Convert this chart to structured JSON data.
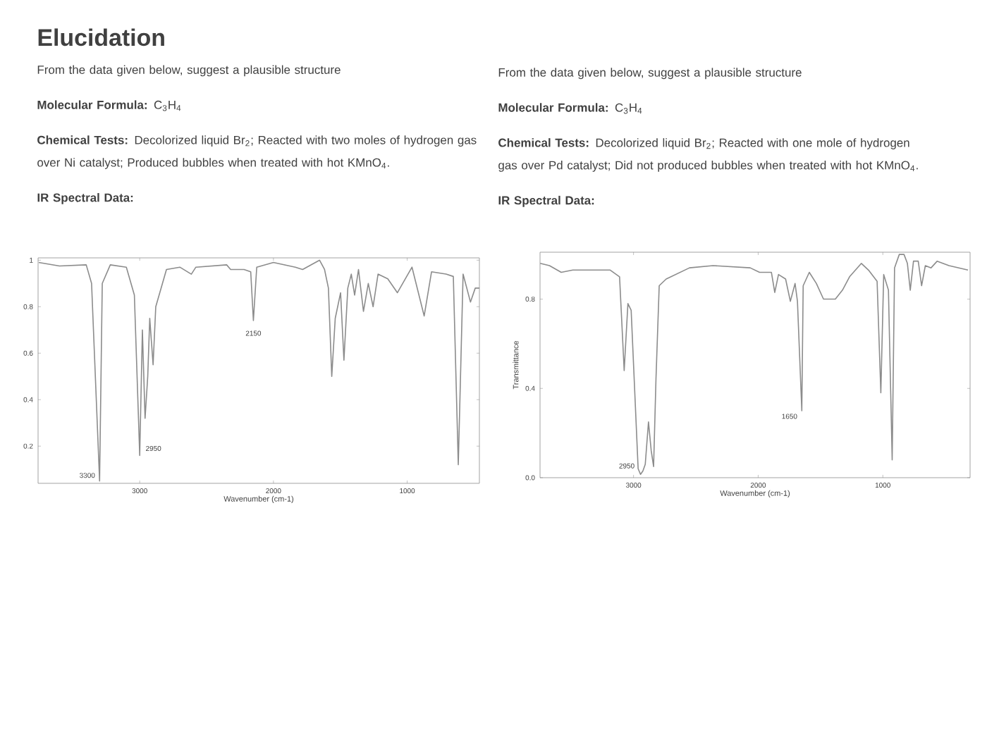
{
  "chart_data": [
    {
      "type": "line",
      "title": "Elucidation",
      "subtitle": "From the data given below, suggest a plausible structure",
      "annotations": [
        "**Molecular Formula:** C$_{3}$H$_{4}$",
        "**Chemical Tests:** Decolorized liquid Br$_{2}$; Reacted with two moles of hydrogen gas over Ni catalyst; Produced bubbles when treated with hot KMnO$_{4}$.",
        "**IR Spectral Data:**",
        {
          "text": "3300",
          "x": 3300,
          "y": 0.05
        },
        {
          "text": "2950",
          "x": 3000,
          "y": 0.16
        },
        {
          "text": "2150",
          "x": 2150,
          "y": 0.74
        }
      ],
      "xlabel": "Wavenumber (cm-1)",
      "color": "#8c8c8c",
      "x": [
        3755,
        3600,
        3400,
        3360,
        3300,
        3280,
        3220,
        3100,
        3040,
        3000,
        2980,
        2960,
        2940,
        2925,
        2900,
        2880,
        2850,
        2800,
        2700,
        2614,
        2580,
        2350,
        2320,
        2220,
        2170,
        2150,
        2125,
        2000,
        1836,
        1782,
        1655,
        1618,
        1589,
        1564,
        1538,
        1498,
        1473,
        1444,
        1418,
        1393,
        1364,
        1327,
        1291,
        1255,
        1218,
        1145,
        1073,
        964,
        873,
        818,
        709,
        655,
        618,
        582,
        527,
        491,
        460
      ],
      "values": [
        0.99,
        0.975,
        0.98,
        0.9,
        0.05,
        0.9,
        0.98,
        0.97,
        0.85,
        0.16,
        0.7,
        0.32,
        0.5,
        0.75,
        0.55,
        0.8,
        0.86,
        0.96,
        0.97,
        0.94,
        0.97,
        0.98,
        0.96,
        0.96,
        0.95,
        0.74,
        0.97,
        0.99,
        0.97,
        0.96,
        1.0,
        0.96,
        0.88,
        0.5,
        0.75,
        0.86,
        0.57,
        0.88,
        0.94,
        0.85,
        0.96,
        0.78,
        0.9,
        0.8,
        0.94,
        0.92,
        0.86,
        0.97,
        0.76,
        0.95,
        0.94,
        0.93,
        0.12,
        0.94,
        0.82,
        0.88,
        0.88
      ],
      "xlim": [
        3760,
        460
      ],
      "ylim": [
        0.04,
        1.01
      ],
      "xticks": [
        3000,
        2000,
        1000
      ],
      "yticks": [
        1,
        0.8,
        0.6,
        0.4,
        0.2
      ]
    },
    {
      "type": "line",
      "subtitle": "From the data given below, suggest a plausible structure",
      "annotations": [
        "**Molecular Formula:** C$_{3}$H$_{4}$",
        "**Chemical Tests:** Decolorized liquid Br$_{2}$; Reacted with one mole of hydrogen gas over Pd catalyst; Did not produced bubbles when treated with hot KMnO$_{4}$.",
        "**IR Spectral Data:**",
        {
          "text": "2950",
          "x": 2944,
          "y": 0.015
        },
        {
          "text": "1650",
          "x": 1650,
          "y": 0.3
        }
      ],
      "xlabel": "Wavenumber (cm-1)",
      "ylabel": "Transmittance",
      "color": "#8c8c8c",
      "x": [
        3749,
        3674,
        3580,
        3487,
        3187,
        3112,
        3075,
        3045,
        3019,
        2963,
        2944,
        2925,
        2906,
        2880,
        2858,
        2839,
        2820,
        2794,
        2738,
        2551,
        2363,
        2064,
        1989,
        1894,
        1867,
        1837,
        1780,
        1742,
        1704,
        1685,
        1650,
        1639,
        1590,
        1533,
        1476,
        1381,
        1324,
        1267,
        1172,
        1115,
        1046,
        1016,
        993,
        955,
        925,
        906,
        868,
        830,
        803,
        780,
        754,
        716,
        689,
        659,
        613,
        564,
        469,
        317
      ],
      "values": [
        0.96,
        0.95,
        0.92,
        0.93,
        0.93,
        0.9,
        0.48,
        0.78,
        0.75,
        0.04,
        0.015,
        0.03,
        0.06,
        0.25,
        0.12,
        0.05,
        0.44,
        0.86,
        0.89,
        0.94,
        0.95,
        0.94,
        0.92,
        0.92,
        0.83,
        0.91,
        0.89,
        0.79,
        0.87,
        0.79,
        0.3,
        0.86,
        0.92,
        0.87,
        0.8,
        0.8,
        0.84,
        0.9,
        0.96,
        0.93,
        0.88,
        0.38,
        0.91,
        0.84,
        0.08,
        0.94,
        1.0,
        1.0,
        0.96,
        0.84,
        0.97,
        0.97,
        0.86,
        0.95,
        0.94,
        0.97,
        0.95,
        0.93
      ],
      "xlim": [
        3750,
        300
      ],
      "ylim": [
        0,
        1.01
      ],
      "xticks": [
        3000,
        2000,
        1000
      ],
      "yticks": [
        0.8,
        0.4,
        {
          "value": 0,
          "label": "0.0"
        }
      ]
    }
  ]
}
